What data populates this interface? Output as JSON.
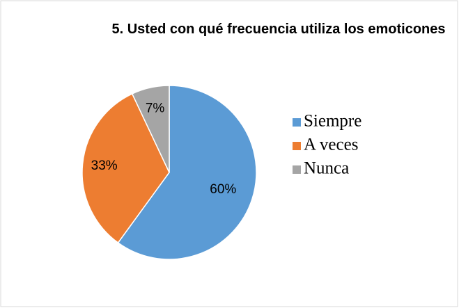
{
  "chart_data": {
    "type": "pie",
    "title": "5. Usted con qué frecuencia utiliza los emoticones",
    "categories": [
      "Siempre",
      "A veces",
      "Nunca"
    ],
    "values": [
      60,
      33,
      7
    ],
    "value_labels": [
      "60%",
      "33%",
      "7%"
    ],
    "colors": [
      "#5b9bd5",
      "#ed7d31",
      "#a5a5a5"
    ],
    "legend": "right"
  }
}
